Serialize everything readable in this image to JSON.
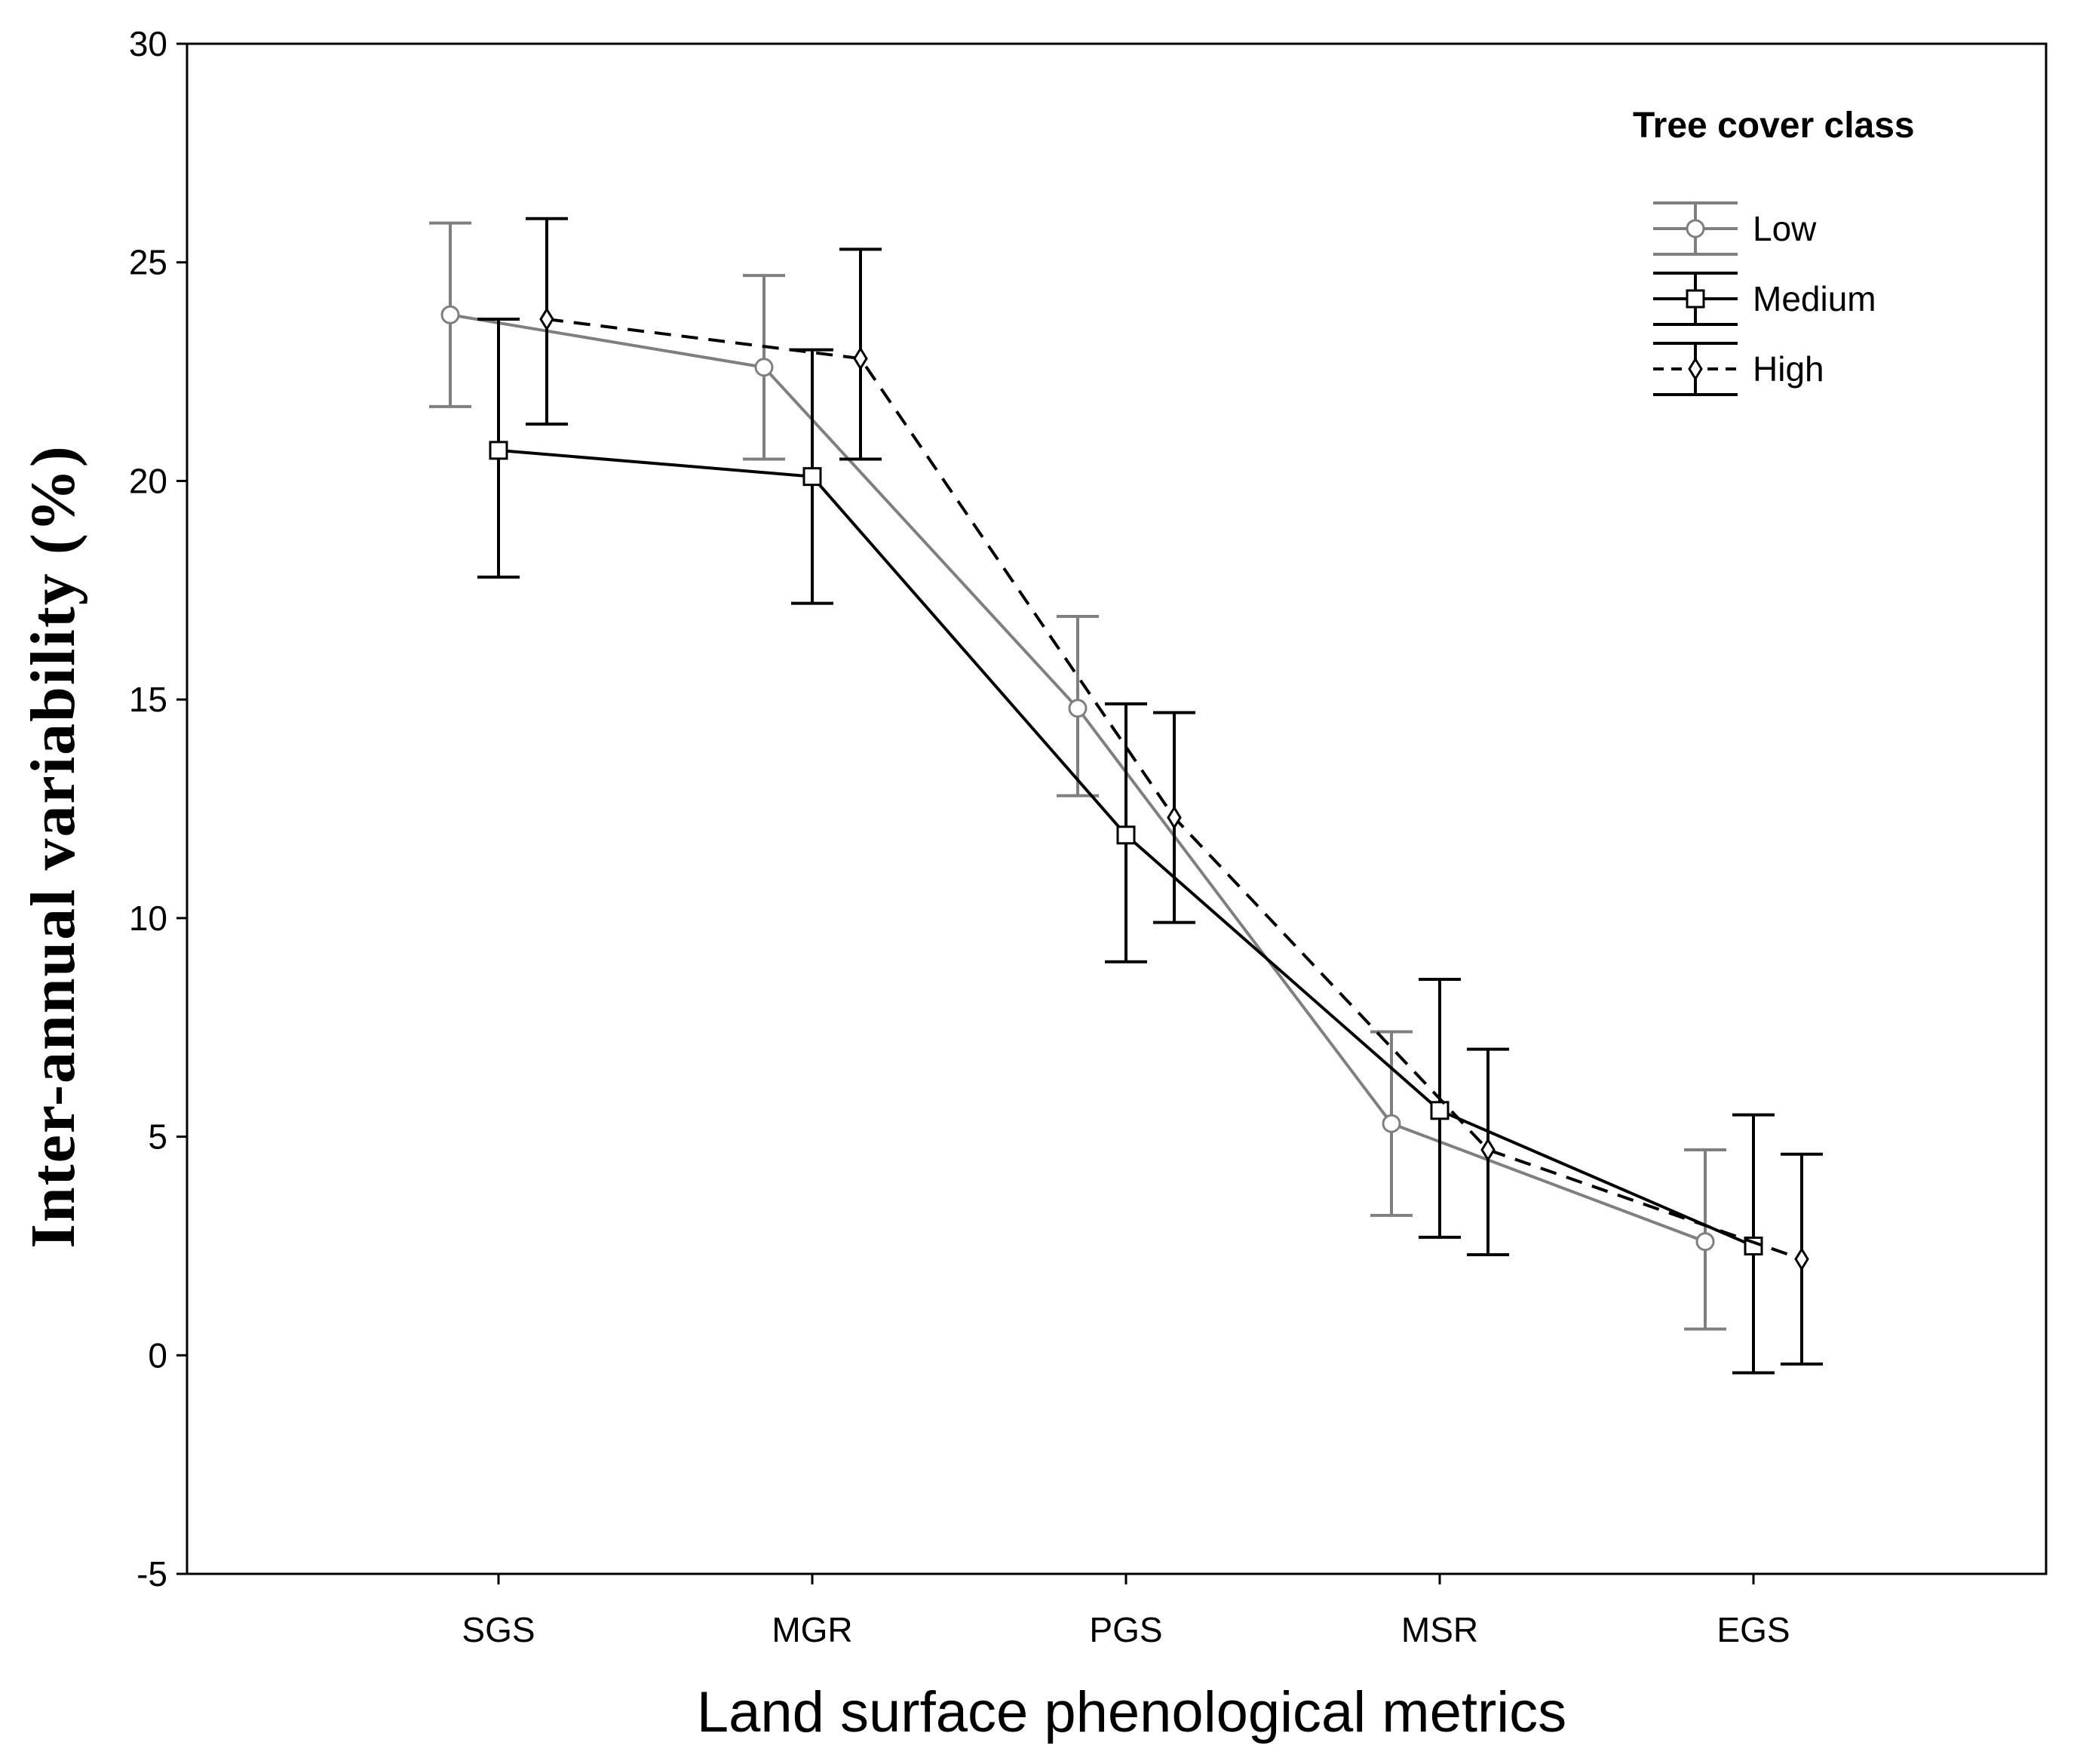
{
  "chart_data": {
    "type": "line",
    "title": "",
    "xlabel": "Land surface phenological metrics",
    "ylabel": "Inter-annual variability (%)",
    "ylim": [
      -5,
      30
    ],
    "yticks": [
      -5,
      0,
      5,
      10,
      15,
      20,
      25,
      30
    ],
    "categories": [
      "SGS",
      "MGR",
      "PGS",
      "MSR",
      "EGS"
    ],
    "legend": {
      "title": "Tree cover class",
      "position": "top-right"
    },
    "series": [
      {
        "name": "Low",
        "color": "#7f7f7f",
        "line_style": "solid",
        "marker": "circle",
        "values": [
          23.8,
          22.6,
          14.8,
          5.3,
          2.6
        ],
        "lower": [
          21.7,
          20.5,
          12.8,
          3.2,
          0.6
        ],
        "upper": [
          25.9,
          24.7,
          16.9,
          7.4,
          4.7
        ]
      },
      {
        "name": "Medium",
        "color": "#000000",
        "line_style": "solid",
        "marker": "square",
        "values": [
          20.7,
          20.1,
          11.9,
          5.6,
          2.5
        ],
        "lower": [
          17.8,
          17.2,
          9.0,
          2.7,
          -0.4
        ],
        "upper": [
          23.7,
          23.0,
          14.9,
          8.6,
          5.5
        ]
      },
      {
        "name": "High",
        "color": "#000000",
        "line_style": "dashed",
        "marker": "diamond",
        "values": [
          23.7,
          22.8,
          12.3,
          4.7,
          2.2
        ],
        "lower": [
          21.3,
          20.5,
          9.9,
          2.3,
          -0.2
        ],
        "upper": [
          26.0,
          25.3,
          14.7,
          7.0,
          4.6
        ]
      }
    ]
  }
}
